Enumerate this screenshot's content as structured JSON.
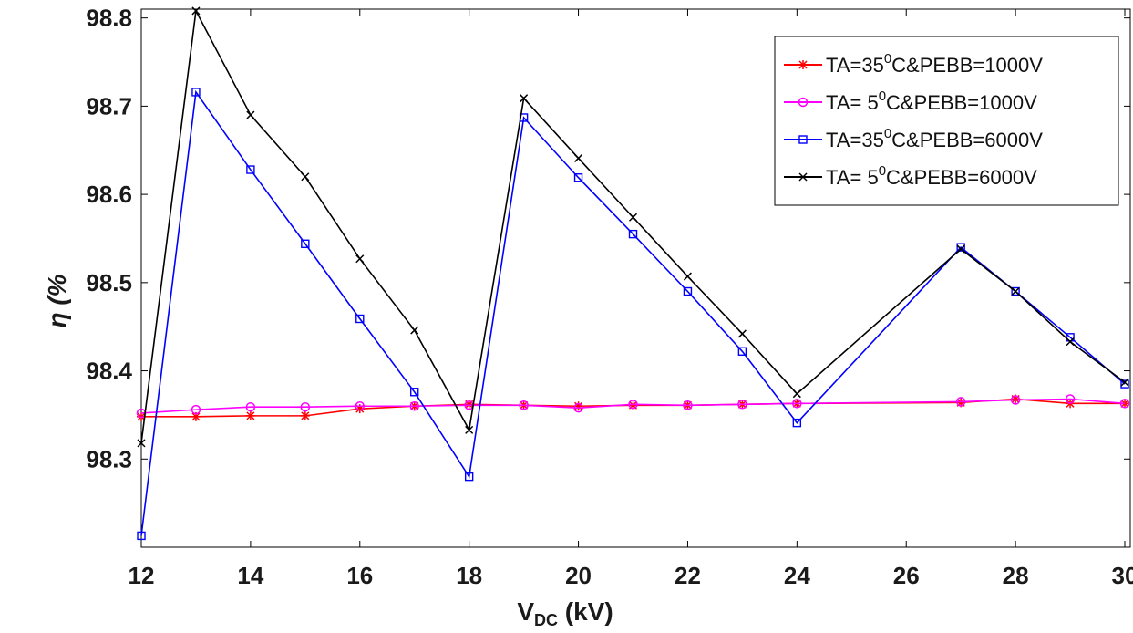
{
  "chart_data": {
    "type": "line",
    "xlabel": {
      "main": "V",
      "sub": "DC",
      "rest": " (kV)"
    },
    "ylabel": "η (%",
    "xlim": [
      12,
      30.1
    ],
    "ylim": [
      98.2,
      98.81
    ],
    "xticks": [
      "12",
      "14",
      "16",
      "18",
      "20",
      "22",
      "24",
      "26",
      "28",
      "30"
    ],
    "yticks": [
      "98.3",
      "98.4",
      "98.5",
      "98.6",
      "98.7",
      "98.8"
    ],
    "grid": false,
    "legend_position": "top-right",
    "series": [
      {
        "name": "TA=35⁰C&PEBB=1000V",
        "legend": {
          "pre": "TA=35",
          "sup": "0",
          "post": "C&PEBB=1000V"
        },
        "color": "#ff0000",
        "marker": "asterisk",
        "x": [
          12,
          13,
          14,
          15,
          16,
          17,
          18,
          19,
          20,
          21,
          22,
          23,
          24,
          27,
          28,
          29,
          30
        ],
        "y": [
          98.348,
          98.348,
          98.349,
          98.349,
          98.357,
          98.36,
          98.362,
          98.361,
          98.36,
          98.361,
          98.361,
          98.362,
          98.363,
          98.364,
          98.368,
          98.363,
          98.363
        ]
      },
      {
        "name": "TA= 5⁰C&PEBB=1000V",
        "legend": {
          "pre": "TA= 5",
          "sup": "0",
          "post": "C&PEBB=1000V"
        },
        "color": "#ff00ff",
        "marker": "circle",
        "x": [
          12,
          13,
          14,
          15,
          16,
          17,
          18,
          19,
          20,
          21,
          22,
          23,
          24,
          27,
          28,
          29,
          30
        ],
        "y": [
          98.352,
          98.356,
          98.359,
          98.359,
          98.36,
          98.36,
          98.361,
          98.361,
          98.358,
          98.362,
          98.361,
          98.362,
          98.363,
          98.365,
          98.367,
          98.368,
          98.363
        ]
      },
      {
        "name": "TA=35⁰C&PEBB=6000V",
        "legend": {
          "pre": "TA=35",
          "sup": "0",
          "post": "C&PEBB=6000V"
        },
        "color": "#0000ff",
        "marker": "square",
        "x": [
          12,
          13,
          14,
          15,
          16,
          17,
          18,
          19,
          20,
          21,
          22,
          23,
          24,
          27,
          28,
          29,
          30
        ],
        "y": [
          98.213,
          98.716,
          98.628,
          98.544,
          98.459,
          98.376,
          98.28,
          98.687,
          98.619,
          98.555,
          98.49,
          98.422,
          98.341,
          98.54,
          98.49,
          98.438,
          98.385
        ]
      },
      {
        "name": "TA= 5⁰C&PEBB=6000V",
        "legend": {
          "pre": "TA= 5",
          "sup": "0",
          "post": "C&PEBB=6000V"
        },
        "color": "#000000",
        "marker": "x",
        "x": [
          12,
          13,
          14,
          15,
          16,
          17,
          18,
          19,
          20,
          21,
          22,
          23,
          24,
          27,
          28,
          29,
          30
        ],
        "y": [
          98.318,
          98.808,
          98.69,
          98.62,
          98.527,
          98.446,
          98.333,
          98.709,
          98.641,
          98.574,
          98.507,
          98.442,
          98.374,
          98.538,
          98.49,
          98.433,
          98.387
        ]
      }
    ]
  }
}
